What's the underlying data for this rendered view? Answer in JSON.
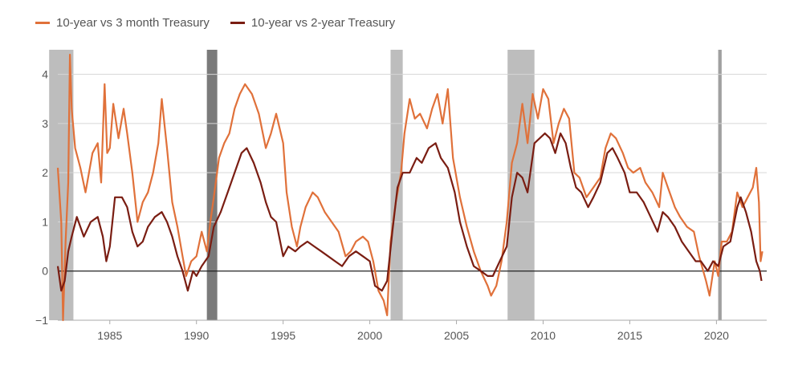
{
  "chart_data": {
    "type": "line",
    "title": "",
    "xlabel": "",
    "ylabel": "",
    "xlim": [
      1982,
      2022.9
    ],
    "ylim": [
      -1,
      4.5
    ],
    "x_ticks": [
      "1985",
      "1990",
      "1995",
      "2000",
      "2005",
      "2010",
      "2015",
      "2020"
    ],
    "y_ticks": [
      "4",
      "3",
      "2",
      "1",
      "0",
      "−1"
    ],
    "legend_position": "top-left",
    "recessions": [
      {
        "start": 1981.5,
        "end": 1982.9,
        "shade": "#bdbdbd"
      },
      {
        "start": 1990.6,
        "end": 1991.2,
        "shade": "#7a7a7a"
      },
      {
        "start": 2001.2,
        "end": 2001.9,
        "shade": "#bdbdbd"
      },
      {
        "start": 2007.95,
        "end": 2009.5,
        "shade": "#bdbdbd"
      },
      {
        "start": 2020.1,
        "end": 2020.3,
        "shade": "#a0a0a0"
      }
    ],
    "series": [
      {
        "name": "10-year vs 3 month Treasury",
        "color": "#e0713a",
        "points": [
          [
            1982.0,
            2.1
          ],
          [
            1982.2,
            1.0
          ],
          [
            1982.3,
            -1.0
          ],
          [
            1982.45,
            0.6
          ],
          [
            1982.6,
            1.8
          ],
          [
            1982.7,
            4.4
          ],
          [
            1982.8,
            3.3
          ],
          [
            1983.0,
            2.5
          ],
          [
            1983.3,
            2.1
          ],
          [
            1983.6,
            1.6
          ],
          [
            1984.0,
            2.4
          ],
          [
            1984.3,
            2.6
          ],
          [
            1984.5,
            1.8
          ],
          [
            1984.7,
            3.8
          ],
          [
            1984.85,
            2.4
          ],
          [
            1985.0,
            2.5
          ],
          [
            1985.2,
            3.4
          ],
          [
            1985.5,
            2.7
          ],
          [
            1985.8,
            3.3
          ],
          [
            1986.0,
            2.8
          ],
          [
            1986.3,
            2.0
          ],
          [
            1986.6,
            1.0
          ],
          [
            1986.9,
            1.4
          ],
          [
            1987.2,
            1.6
          ],
          [
            1987.5,
            2.0
          ],
          [
            1987.8,
            2.6
          ],
          [
            1988.0,
            3.5
          ],
          [
            1988.3,
            2.5
          ],
          [
            1988.6,
            1.4
          ],
          [
            1988.9,
            0.9
          ],
          [
            1989.2,
            0.3
          ],
          [
            1989.4,
            -0.1
          ],
          [
            1989.7,
            0.2
          ],
          [
            1990.0,
            0.3
          ],
          [
            1990.3,
            0.8
          ],
          [
            1990.6,
            0.4
          ],
          [
            1990.8,
            1.0
          ],
          [
            1991.0,
            1.5
          ],
          [
            1991.3,
            2.3
          ],
          [
            1991.6,
            2.6
          ],
          [
            1991.9,
            2.8
          ],
          [
            1992.2,
            3.3
          ],
          [
            1992.5,
            3.6
          ],
          [
            1992.8,
            3.8
          ],
          [
            1993.2,
            3.6
          ],
          [
            1993.6,
            3.2
          ],
          [
            1994.0,
            2.5
          ],
          [
            1994.3,
            2.8
          ],
          [
            1994.6,
            3.2
          ],
          [
            1995.0,
            2.6
          ],
          [
            1995.2,
            1.6
          ],
          [
            1995.5,
            0.9
          ],
          [
            1995.8,
            0.5
          ],
          [
            1996.0,
            0.9
          ],
          [
            1996.3,
            1.3
          ],
          [
            1996.7,
            1.6
          ],
          [
            1997.0,
            1.5
          ],
          [
            1997.4,
            1.2
          ],
          [
            1997.8,
            1.0
          ],
          [
            1998.2,
            0.8
          ],
          [
            1998.6,
            0.3
          ],
          [
            1998.9,
            0.4
          ],
          [
            1999.2,
            0.6
          ],
          [
            1999.6,
            0.7
          ],
          [
            1999.9,
            0.6
          ],
          [
            2000.2,
            0.2
          ],
          [
            2000.5,
            -0.4
          ],
          [
            2000.8,
            -0.6
          ],
          [
            2001.0,
            -0.9
          ],
          [
            2001.2,
            0.6
          ],
          [
            2001.5,
            1.4
          ],
          [
            2001.8,
            2.0
          ],
          [
            2002.0,
            2.8
          ],
          [
            2002.3,
            3.5
          ],
          [
            2002.6,
            3.1
          ],
          [
            2002.9,
            3.2
          ],
          [
            2003.3,
            2.9
          ],
          [
            2003.6,
            3.3
          ],
          [
            2003.9,
            3.6
          ],
          [
            2004.2,
            3.0
          ],
          [
            2004.5,
            3.7
          ],
          [
            2004.8,
            2.3
          ],
          [
            2005.2,
            1.5
          ],
          [
            2005.6,
            0.9
          ],
          [
            2006.0,
            0.4
          ],
          [
            2006.4,
            0.0
          ],
          [
            2006.8,
            -0.3
          ],
          [
            2007.0,
            -0.5
          ],
          [
            2007.3,
            -0.3
          ],
          [
            2007.6,
            0.2
          ],
          [
            2007.9,
            1.0
          ],
          [
            2008.2,
            2.2
          ],
          [
            2008.5,
            2.6
          ],
          [
            2008.8,
            3.4
          ],
          [
            2009.1,
            2.6
          ],
          [
            2009.4,
            3.6
          ],
          [
            2009.7,
            3.1
          ],
          [
            2010.0,
            3.7
          ],
          [
            2010.3,
            3.5
          ],
          [
            2010.6,
            2.6
          ],
          [
            2010.9,
            3.0
          ],
          [
            2011.2,
            3.3
          ],
          [
            2011.5,
            3.1
          ],
          [
            2011.8,
            2.0
          ],
          [
            2012.1,
            1.9
          ],
          [
            2012.5,
            1.5
          ],
          [
            2012.9,
            1.7
          ],
          [
            2013.3,
            1.9
          ],
          [
            2013.6,
            2.5
          ],
          [
            2013.9,
            2.8
          ],
          [
            2014.2,
            2.7
          ],
          [
            2014.6,
            2.4
          ],
          [
            2014.9,
            2.1
          ],
          [
            2015.2,
            2.0
          ],
          [
            2015.6,
            2.1
          ],
          [
            2015.9,
            1.8
          ],
          [
            2016.3,
            1.6
          ],
          [
            2016.7,
            1.3
          ],
          [
            2016.9,
            2.0
          ],
          [
            2017.2,
            1.7
          ],
          [
            2017.6,
            1.3
          ],
          [
            2017.9,
            1.1
          ],
          [
            2018.3,
            0.9
          ],
          [
            2018.7,
            0.8
          ],
          [
            2019.0,
            0.3
          ],
          [
            2019.4,
            -0.2
          ],
          [
            2019.6,
            -0.5
          ],
          [
            2019.9,
            0.2
          ],
          [
            2020.1,
            -0.1
          ],
          [
            2020.3,
            0.6
          ],
          [
            2020.6,
            0.6
          ],
          [
            2020.9,
            0.8
          ],
          [
            2021.2,
            1.6
          ],
          [
            2021.5,
            1.3
          ],
          [
            2021.8,
            1.5
          ],
          [
            2022.1,
            1.7
          ],
          [
            2022.3,
            2.1
          ],
          [
            2022.45,
            1.4
          ],
          [
            2022.55,
            0.2
          ],
          [
            2022.65,
            0.4
          ]
        ]
      },
      {
        "name": "10-year vs 2-year Treasury",
        "color": "#7a1d12",
        "points": [
          [
            1982.0,
            0.1
          ],
          [
            1982.2,
            -0.4
          ],
          [
            1982.4,
            -0.2
          ],
          [
            1982.6,
            0.4
          ],
          [
            1982.8,
            0.7
          ],
          [
            1983.1,
            1.1
          ],
          [
            1983.5,
            0.7
          ],
          [
            1983.9,
            1.0
          ],
          [
            1984.3,
            1.1
          ],
          [
            1984.6,
            0.7
          ],
          [
            1984.8,
            0.2
          ],
          [
            1985.0,
            0.5
          ],
          [
            1985.3,
            1.5
          ],
          [
            1985.7,
            1.5
          ],
          [
            1986.0,
            1.3
          ],
          [
            1986.3,
            0.8
          ],
          [
            1986.6,
            0.5
          ],
          [
            1986.9,
            0.6
          ],
          [
            1987.2,
            0.9
          ],
          [
            1987.6,
            1.1
          ],
          [
            1988.0,
            1.2
          ],
          [
            1988.3,
            1.0
          ],
          [
            1988.6,
            0.7
          ],
          [
            1988.9,
            0.3
          ],
          [
            1989.2,
            0.0
          ],
          [
            1989.5,
            -0.4
          ],
          [
            1989.8,
            0.0
          ],
          [
            1990.0,
            -0.1
          ],
          [
            1990.3,
            0.1
          ],
          [
            1990.7,
            0.3
          ],
          [
            1991.0,
            0.9
          ],
          [
            1991.4,
            1.2
          ],
          [
            1991.8,
            1.6
          ],
          [
            1992.2,
            2.0
          ],
          [
            1992.6,
            2.4
          ],
          [
            1992.9,
            2.5
          ],
          [
            1993.3,
            2.2
          ],
          [
            1993.7,
            1.8
          ],
          [
            1994.0,
            1.4
          ],
          [
            1994.3,
            1.1
          ],
          [
            1994.6,
            1.0
          ],
          [
            1995.0,
            0.3
          ],
          [
            1995.3,
            0.5
          ],
          [
            1995.7,
            0.4
          ],
          [
            1996.0,
            0.5
          ],
          [
            1996.4,
            0.6
          ],
          [
            1996.8,
            0.5
          ],
          [
            1997.2,
            0.4
          ],
          [
            1997.6,
            0.3
          ],
          [
            1998.0,
            0.2
          ],
          [
            1998.4,
            0.1
          ],
          [
            1998.8,
            0.3
          ],
          [
            1999.2,
            0.4
          ],
          [
            1999.6,
            0.3
          ],
          [
            2000.0,
            0.2
          ],
          [
            2000.3,
            -0.3
          ],
          [
            2000.7,
            -0.4
          ],
          [
            2001.0,
            -0.2
          ],
          [
            2001.3,
            0.8
          ],
          [
            2001.6,
            1.7
          ],
          [
            2001.9,
            2.0
          ],
          [
            2002.3,
            2.0
          ],
          [
            2002.7,
            2.3
          ],
          [
            2003.0,
            2.2
          ],
          [
            2003.4,
            2.5
          ],
          [
            2003.8,
            2.6
          ],
          [
            2004.1,
            2.3
          ],
          [
            2004.5,
            2.1
          ],
          [
            2004.9,
            1.6
          ],
          [
            2005.2,
            1.0
          ],
          [
            2005.6,
            0.5
          ],
          [
            2006.0,
            0.1
          ],
          [
            2006.4,
            0.0
          ],
          [
            2006.8,
            -0.1
          ],
          [
            2007.1,
            -0.1
          ],
          [
            2007.5,
            0.2
          ],
          [
            2007.9,
            0.5
          ],
          [
            2008.2,
            1.5
          ],
          [
            2008.5,
            2.0
          ],
          [
            2008.8,
            1.9
          ],
          [
            2009.1,
            1.6
          ],
          [
            2009.5,
            2.6
          ],
          [
            2009.8,
            2.7
          ],
          [
            2010.1,
            2.8
          ],
          [
            2010.4,
            2.7
          ],
          [
            2010.7,
            2.4
          ],
          [
            2011.0,
            2.8
          ],
          [
            2011.3,
            2.6
          ],
          [
            2011.6,
            2.1
          ],
          [
            2011.9,
            1.7
          ],
          [
            2012.2,
            1.6
          ],
          [
            2012.6,
            1.3
          ],
          [
            2012.9,
            1.5
          ],
          [
            2013.3,
            1.8
          ],
          [
            2013.7,
            2.4
          ],
          [
            2014.0,
            2.5
          ],
          [
            2014.3,
            2.3
          ],
          [
            2014.7,
            2.0
          ],
          [
            2015.0,
            1.6
          ],
          [
            2015.4,
            1.6
          ],
          [
            2015.8,
            1.4
          ],
          [
            2016.2,
            1.1
          ],
          [
            2016.6,
            0.8
          ],
          [
            2016.9,
            1.2
          ],
          [
            2017.2,
            1.1
          ],
          [
            2017.6,
            0.9
          ],
          [
            2018.0,
            0.6
          ],
          [
            2018.4,
            0.4
          ],
          [
            2018.8,
            0.2
          ],
          [
            2019.1,
            0.2
          ],
          [
            2019.5,
            0.0
          ],
          [
            2019.8,
            0.2
          ],
          [
            2020.1,
            0.1
          ],
          [
            2020.4,
            0.5
          ],
          [
            2020.8,
            0.6
          ],
          [
            2021.2,
            1.3
          ],
          [
            2021.4,
            1.5
          ],
          [
            2021.7,
            1.2
          ],
          [
            2022.0,
            0.8
          ],
          [
            2022.3,
            0.2
          ],
          [
            2022.5,
            0.0
          ],
          [
            2022.6,
            -0.2
          ]
        ]
      }
    ]
  }
}
